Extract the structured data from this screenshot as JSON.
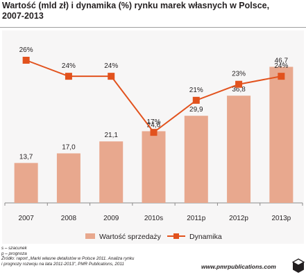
{
  "header": {
    "title_line1": "Wartość (mld zł) i dynamika (%) rynku marek własnych w Polsce,",
    "title_line2": "2007-2013"
  },
  "colors": {
    "bars": "#e8a88e",
    "line": "#e2521d",
    "background": "#f7f6f6"
  },
  "chart_data": {
    "type": "bar+line",
    "title": "Wartość (mld zł) i dynamika (%) rynku marek własnych w Polsce, 2007-2013",
    "categories": [
      "2007",
      "2008",
      "2009",
      "2010s",
      "2011p",
      "2012p",
      "2013p"
    ],
    "series": [
      {
        "name": "Wartość sprzedaży",
        "type": "bar",
        "values": [
          13.7,
          17.0,
          21.1,
          24.6,
          29.9,
          36.8,
          46.7
        ],
        "labels": [
          "13,7",
          "17,0",
          "21,1",
          "24,6",
          "29,9",
          "36,8",
          "46,7"
        ]
      },
      {
        "name": "Dynamika",
        "type": "line",
        "values": [
          26,
          24,
          24,
          17,
          21,
          23,
          24
        ],
        "labels": [
          "26%",
          "24%",
          "24%",
          "17%",
          "21%",
          "23%",
          "24%"
        ]
      }
    ],
    "legend_position": "bottom",
    "grid": false
  },
  "legend": {
    "bars_label": "Wartość sprzedaży",
    "line_label": "Dynamika"
  },
  "notes": {
    "line1": "s – szacunek",
    "line2": "p – prognoza",
    "line3": "Źródło: raport „Marki własne detalistów w Polsce 2011. Analiza rynku",
    "line4": "i prognozy rozwoju na lata 2011-2013”, PMR Publications, 2011"
  },
  "footer": {
    "url": "www.pmrpublications.com",
    "logo_icon": "pmr-cube-logo"
  }
}
